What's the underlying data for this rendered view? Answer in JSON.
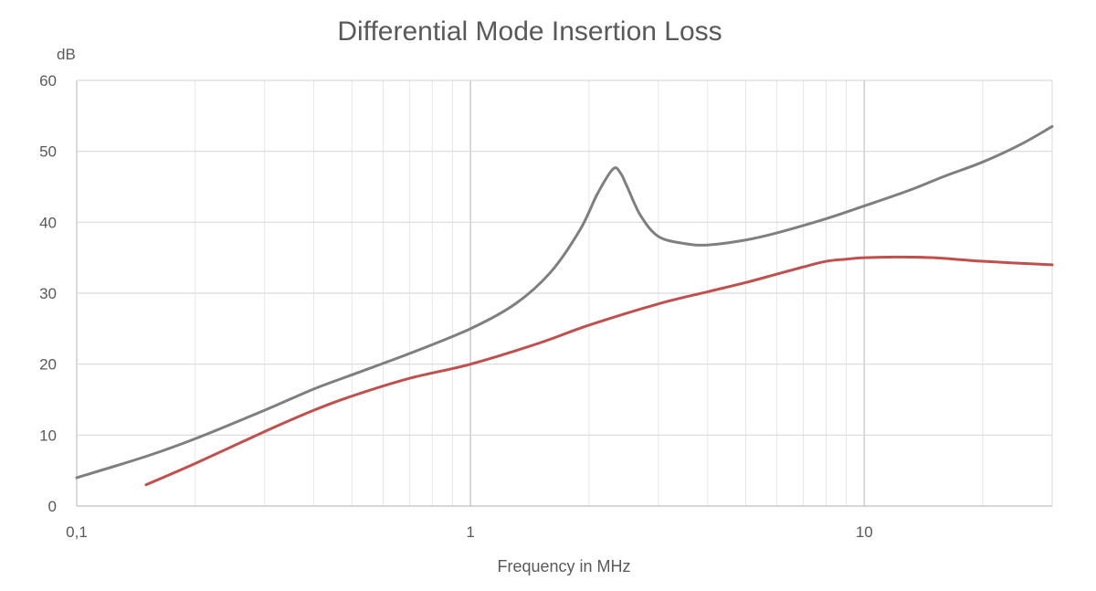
{
  "chart_data": {
    "type": "line",
    "title": "Differential Mode Insertion Loss",
    "ylabel": "dB",
    "xlabel": "Frequency in MHz",
    "x_scale": "log",
    "xlim": [
      0.1,
      30
    ],
    "ylim": [
      0,
      60
    ],
    "y_ticks": [
      0,
      10,
      20,
      30,
      40,
      50,
      60
    ],
    "y_tick_labels": [
      "0",
      "10",
      "20",
      "30",
      "40",
      "50",
      "60"
    ],
    "x_ticks": [
      0.1,
      1,
      10
    ],
    "x_tick_labels": [
      "0,1",
      "1",
      "10"
    ],
    "grid": true,
    "legend": "none",
    "series": [
      {
        "color": "#7f7f7f",
        "x": [
          0.1,
          0.15,
          0.2,
          0.3,
          0.4,
          0.5,
          0.7,
          1.0,
          1.3,
          1.6,
          1.9,
          2.1,
          2.3,
          2.4,
          2.5,
          2.7,
          3.0,
          3.5,
          4.0,
          5.0,
          6.0,
          8.0,
          10.0,
          13.0,
          16.0,
          20.0,
          25.0,
          30.0
        ],
        "y": [
          4.0,
          7.0,
          9.5,
          13.5,
          16.5,
          18.5,
          21.5,
          25.0,
          28.5,
          33.0,
          39.0,
          44.0,
          47.5,
          47.0,
          45.0,
          41.0,
          38.0,
          37.0,
          36.8,
          37.5,
          38.5,
          40.5,
          42.3,
          44.5,
          46.5,
          48.5,
          51.0,
          53.5
        ]
      },
      {
        "color": "#c0504d",
        "x": [
          0.15,
          0.2,
          0.3,
          0.4,
          0.5,
          0.7,
          1.0,
          1.5,
          2.0,
          3.0,
          4.0,
          5.0,
          6.0,
          7.0,
          8.0,
          9.0,
          10.0,
          12.0,
          15.0,
          20.0,
          30.0
        ],
        "y": [
          3.0,
          6.0,
          10.5,
          13.5,
          15.5,
          18.0,
          20.0,
          23.0,
          25.5,
          28.5,
          30.2,
          31.5,
          32.7,
          33.7,
          34.5,
          34.8,
          35.0,
          35.1,
          35.0,
          34.5,
          34.0
        ]
      }
    ]
  }
}
